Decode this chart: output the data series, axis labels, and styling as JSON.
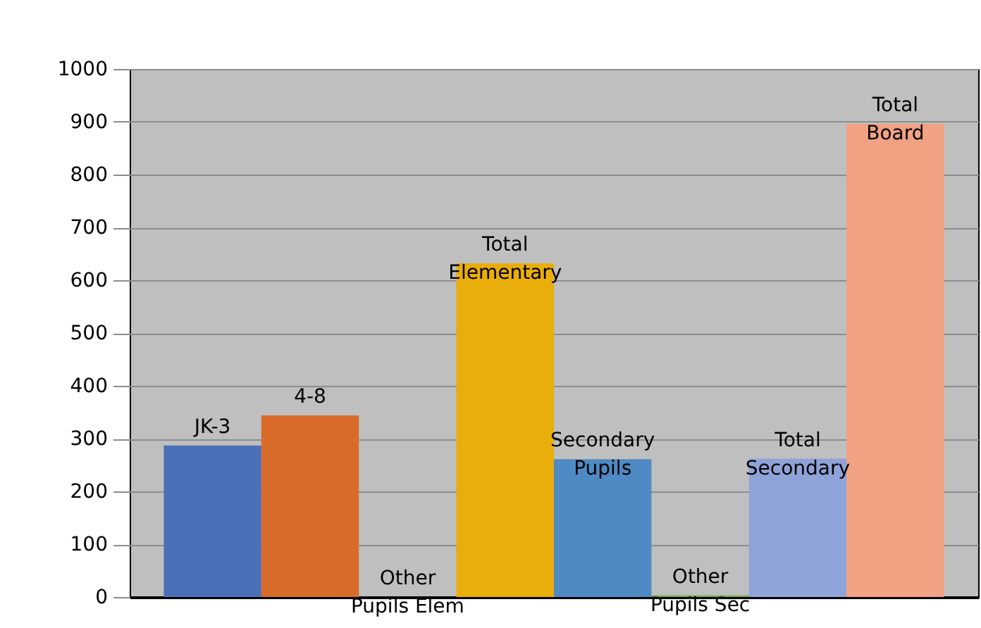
{
  "chart_data": {
    "type": "bar",
    "categories": [
      "JK-3",
      "4-8",
      "Other Pupils Elem",
      "Total Elementary",
      "Secondary Pupils",
      "Other Pupils Sec",
      "Total Secondary",
      "Total Board"
    ],
    "values": [
      287,
      344,
      0,
      632,
      261,
      3,
      262,
      896
    ],
    "colors": [
      "#4a70b8",
      "#d96b2a",
      "#a5a5a5",
      "#e9ad0c",
      "#4f8ac4",
      "#70ad47",
      "#8fa3d8",
      "#f0a283"
    ],
    "ylim": [
      0,
      1000
    ],
    "yticks": [
      0,
      100,
      200,
      300,
      400,
      500,
      600,
      700,
      800,
      900,
      1000
    ],
    "grid": "y",
    "tick_labels": "y"
  }
}
